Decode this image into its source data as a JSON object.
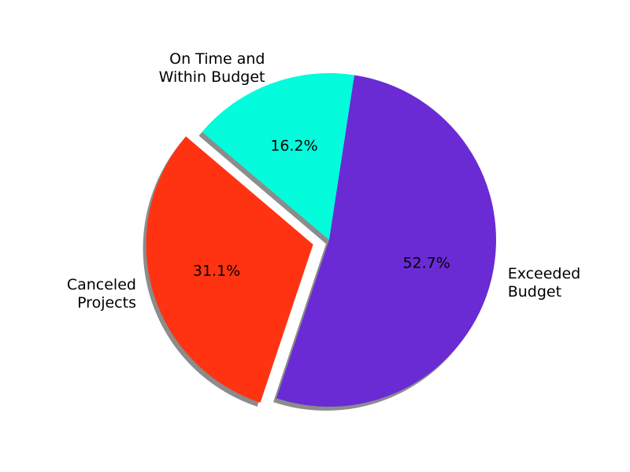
{
  "chart_data": {
    "type": "pie",
    "categories": [
      "On Time and\nWithin Budget",
      "Canceled\nProjects",
      "Exceeded\nBudget"
    ],
    "values": [
      16.2,
      31.1,
      52.7
    ],
    "value_labels": [
      "16.2%",
      "31.1%",
      "52.7%"
    ],
    "colors": [
      "#03fcdc",
      "#ff3311",
      "#6a2bd4"
    ],
    "explode": [
      0,
      0.1,
      0
    ],
    "shadow": true
  }
}
